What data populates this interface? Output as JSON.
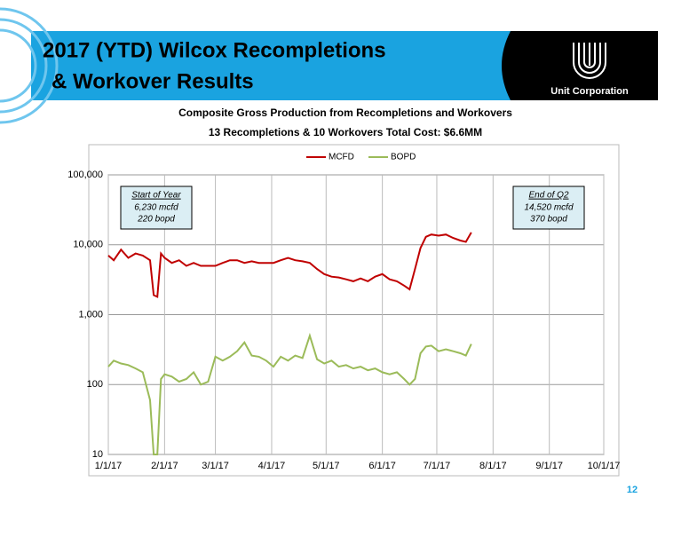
{
  "header": {
    "title_lines": [
      "2017 (YTD) Wilcox Recompletions",
      "& Workover Results"
    ],
    "logo_text": "Unit Corporation"
  },
  "page_number": "12",
  "chart_data": {
    "type": "line",
    "title": "Composite Gross Production from Recompletions and Workovers",
    "subtitle": "13 Recompletions  &  10 Workovers     Total Cost: $6.6MM",
    "x": [
      "1/1/17",
      "1/4/17",
      "1/8/17",
      "1/12/17",
      "1/16/17",
      "1/20/17",
      "1/24/17",
      "1/26/17",
      "1/28/17",
      "1/30/17",
      "2/1/17",
      "2/5/17",
      "2/9/17",
      "2/13/17",
      "2/17/17",
      "2/21/17",
      "2/25/17",
      "3/1/17",
      "3/5/17",
      "3/9/17",
      "3/13/17",
      "3/17/17",
      "3/21/17",
      "3/25/17",
      "3/29/17",
      "4/2/17",
      "4/6/17",
      "4/10/17",
      "4/14/17",
      "4/18/17",
      "4/22/17",
      "4/26/17",
      "4/30/17",
      "5/4/17",
      "5/8/17",
      "5/12/17",
      "5/16/17",
      "5/20/17",
      "5/24/17",
      "5/28/17",
      "6/1/17",
      "6/5/17",
      "6/9/17",
      "6/13/17",
      "6/16/17",
      "6/19/17",
      "6/22/17",
      "6/25/17",
      "6/28/17",
      "7/2/17",
      "7/6/17",
      "7/10/17",
      "7/14/17",
      "7/17/17",
      "7/20/17"
    ],
    "series": [
      {
        "name": "MCFD",
        "color": "#c00000",
        "values": [
          7000,
          6000,
          8500,
          6500,
          7500,
          7000,
          6000,
          1900,
          1800,
          7500,
          6500,
          5500,
          6000,
          5000,
          5500,
          5000,
          5000,
          5000,
          5500,
          6000,
          6000,
          5500,
          5800,
          5500,
          5500,
          5500,
          6000,
          6500,
          6000,
          5800,
          5500,
          4500,
          3800,
          3500,
          3400,
          3200,
          3000,
          3300,
          3000,
          3500,
          3800,
          3200,
          3000,
          2600,
          2300,
          4500,
          9000,
          13000,
          14000,
          13500,
          14000,
          12500,
          11500,
          11000,
          15000
        ]
      },
      {
        "name": "BOPD",
        "color": "#9bbb59",
        "values": [
          180,
          220,
          200,
          190,
          170,
          150,
          60,
          10,
          10,
          120,
          140,
          130,
          110,
          120,
          150,
          100,
          110,
          250,
          220,
          250,
          300,
          400,
          260,
          250,
          220,
          180,
          250,
          220,
          260,
          240,
          500,
          230,
          200,
          220,
          180,
          190,
          170,
          180,
          160,
          170,
          150,
          140,
          150,
          120,
          100,
          120,
          280,
          350,
          360,
          300,
          320,
          300,
          280,
          260,
          380
        ]
      }
    ],
    "xlim": [
      "1/1/17",
      "10/1/17"
    ],
    "xticks": [
      "1/1/17",
      "2/1/17",
      "3/1/17",
      "4/1/17",
      "5/1/17",
      "6/1/17",
      "7/1/17",
      "8/1/17",
      "9/1/17",
      "10/1/17"
    ],
    "ylim": [
      10,
      100000
    ],
    "yticks": [
      10,
      100,
      {
        "value": 1000,
        "label": "1,000"
      },
      {
        "value": 10000,
        "label": "10,000"
      },
      {
        "value": 100000,
        "label": "100,000"
      }
    ],
    "log_scale": true,
    "grid": true,
    "legend_position": "top",
    "annotations": [
      {
        "heading": "Start of Year",
        "lines": [
          "6,230 mcfd",
          "220 bopd"
        ]
      },
      {
        "heading": "End of Q2",
        "lines": [
          "14,520 mcfd",
          "370 bopd"
        ]
      }
    ]
  }
}
